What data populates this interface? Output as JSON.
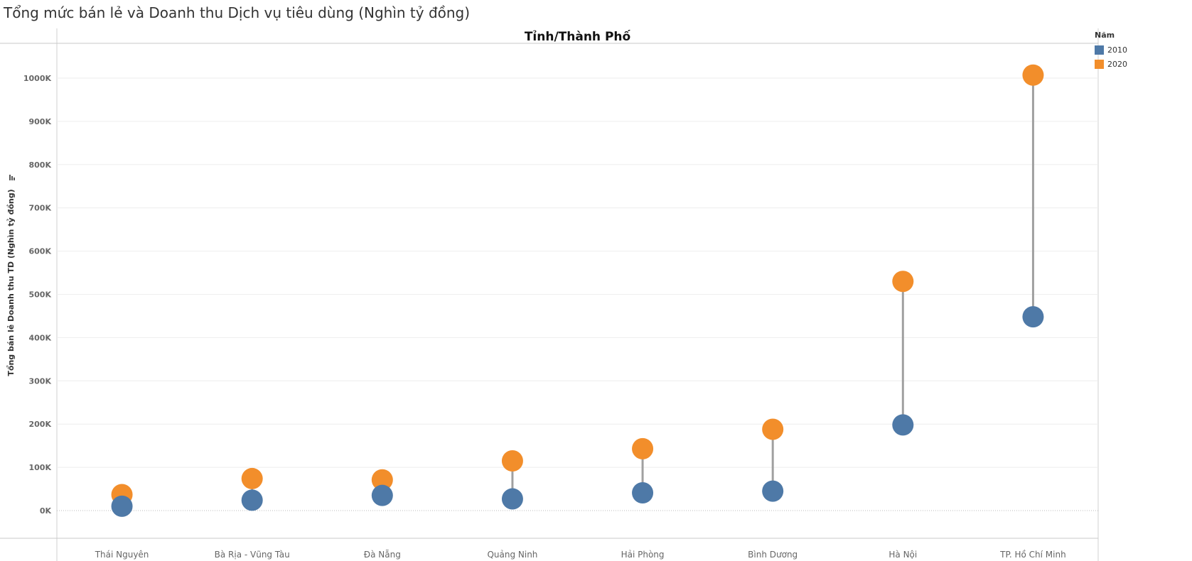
{
  "page_title": "Tổng mức bán lẻ và Doanh thu Dịch vụ tiêu dùng (Nghìn tỷ đồng)",
  "colors": {
    "2010": "#4e79a7",
    "2020": "#f28e2b",
    "connector": "#a0a0a0"
  },
  "chart_data": {
    "type": "dumbbell",
    "xlabel": "Tỉnh/Thành Phố",
    "ylabel": "Tổng bán lẻ Doanh thu TD (Nghìn tỷ đồng)",
    "ylabel_icon": "sort-icon",
    "ylim": [
      -70000,
      1080000
    ],
    "yticks": [
      {
        "value": 0,
        "label": "0K"
      },
      {
        "value": 100000,
        "label": "100K"
      },
      {
        "value": 200000,
        "label": "200K"
      },
      {
        "value": 300000,
        "label": "300K"
      },
      {
        "value": 400000,
        "label": "400K"
      },
      {
        "value": 500000,
        "label": "500K"
      },
      {
        "value": 600000,
        "label": "600K"
      },
      {
        "value": 700000,
        "label": "700K"
      },
      {
        "value": 800000,
        "label": "800K"
      },
      {
        "value": 900000,
        "label": "900K"
      },
      {
        "value": 1000000,
        "label": "1000K"
      }
    ],
    "grid": true,
    "legend_position": "right",
    "legend_title": "Năm",
    "categories": [
      "Thái  Nguyên",
      "Bà Rịa - Vũng Tàu",
      "Đà Nẵng",
      "Quảng Ninh",
      "Hải Phòng",
      "Bình  Dương",
      "Hà Nội",
      "TP. Hồ Chí Minh"
    ],
    "series": [
      {
        "name": "2010",
        "values": [
          10000,
          24000,
          35000,
          27000,
          41000,
          45000,
          198000,
          448000
        ]
      },
      {
        "name": "2020",
        "values": [
          37000,
          74000,
          71000,
          115000,
          143000,
          188000,
          530000,
          1007000
        ]
      }
    ]
  }
}
